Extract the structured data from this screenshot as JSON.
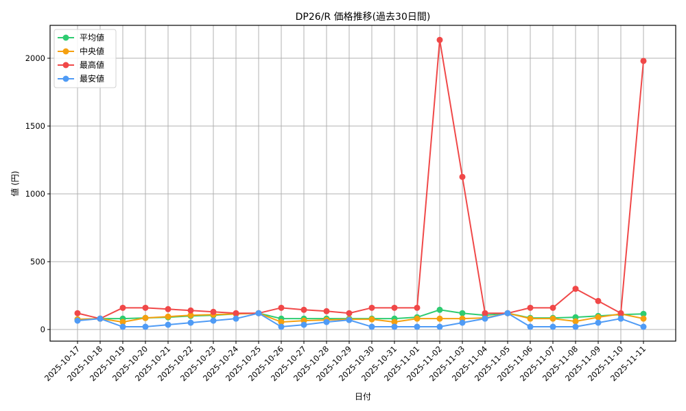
{
  "chart_data": {
    "type": "line",
    "title": "DP26/R 価格推移(過去30日間)",
    "xlabel": "日付",
    "ylabel": "値 (円)",
    "ylim": [
      -85,
      2240
    ],
    "yticks": [
      0,
      500,
      1000,
      1500,
      2000
    ],
    "grid": true,
    "legend_position": "upper left",
    "categories": [
      "2025-10-17",
      "2025-10-18",
      "2025-10-19",
      "2025-10-20",
      "2025-10-21",
      "2025-10-22",
      "2025-10-23",
      "2025-10-24",
      "2025-10-25",
      "2025-10-26",
      "2025-10-27",
      "2025-10-28",
      "2025-10-29",
      "2025-10-30",
      "2025-10-31",
      "2025-11-01",
      "2025-11-02",
      "2025-11-03",
      "2025-11-04",
      "2025-11-05",
      "2025-11-06",
      "2025-11-07",
      "2025-11-08",
      "2025-11-09",
      "2025-11-10",
      "2025-11-11"
    ],
    "series": [
      {
        "name": "平均値",
        "color": "#2ecc71",
        "values": [
          75,
          80,
          80,
          85,
          90,
          100,
          105,
          115,
          120,
          80,
          80,
          80,
          80,
          80,
          80,
          90,
          145,
          120,
          105,
          120,
          85,
          85,
          90,
          100,
          110,
          115
        ]
      },
      {
        "name": "中央値",
        "color": "#f5a00f",
        "values": [
          75,
          80,
          55,
          85,
          95,
          105,
          110,
          115,
          120,
          55,
          65,
          70,
          75,
          75,
          55,
          80,
          80,
          80,
          85,
          120,
          80,
          80,
          60,
          90,
          115,
          80
        ]
      },
      {
        "name": "最高値",
        "color": "#f04848",
        "values": [
          120,
          80,
          160,
          160,
          150,
          140,
          130,
          120,
          120,
          160,
          145,
          135,
          120,
          160,
          160,
          160,
          2135,
          1125,
          120,
          120,
          160,
          160,
          300,
          210,
          120,
          1980
        ]
      },
      {
        "name": "最安値",
        "color": "#4f9bf5",
        "values": [
          65,
          80,
          20,
          20,
          35,
          50,
          65,
          80,
          120,
          20,
          35,
          55,
          70,
          20,
          20,
          20,
          20,
          50,
          80,
          120,
          20,
          20,
          20,
          50,
          80,
          20
        ]
      }
    ]
  }
}
